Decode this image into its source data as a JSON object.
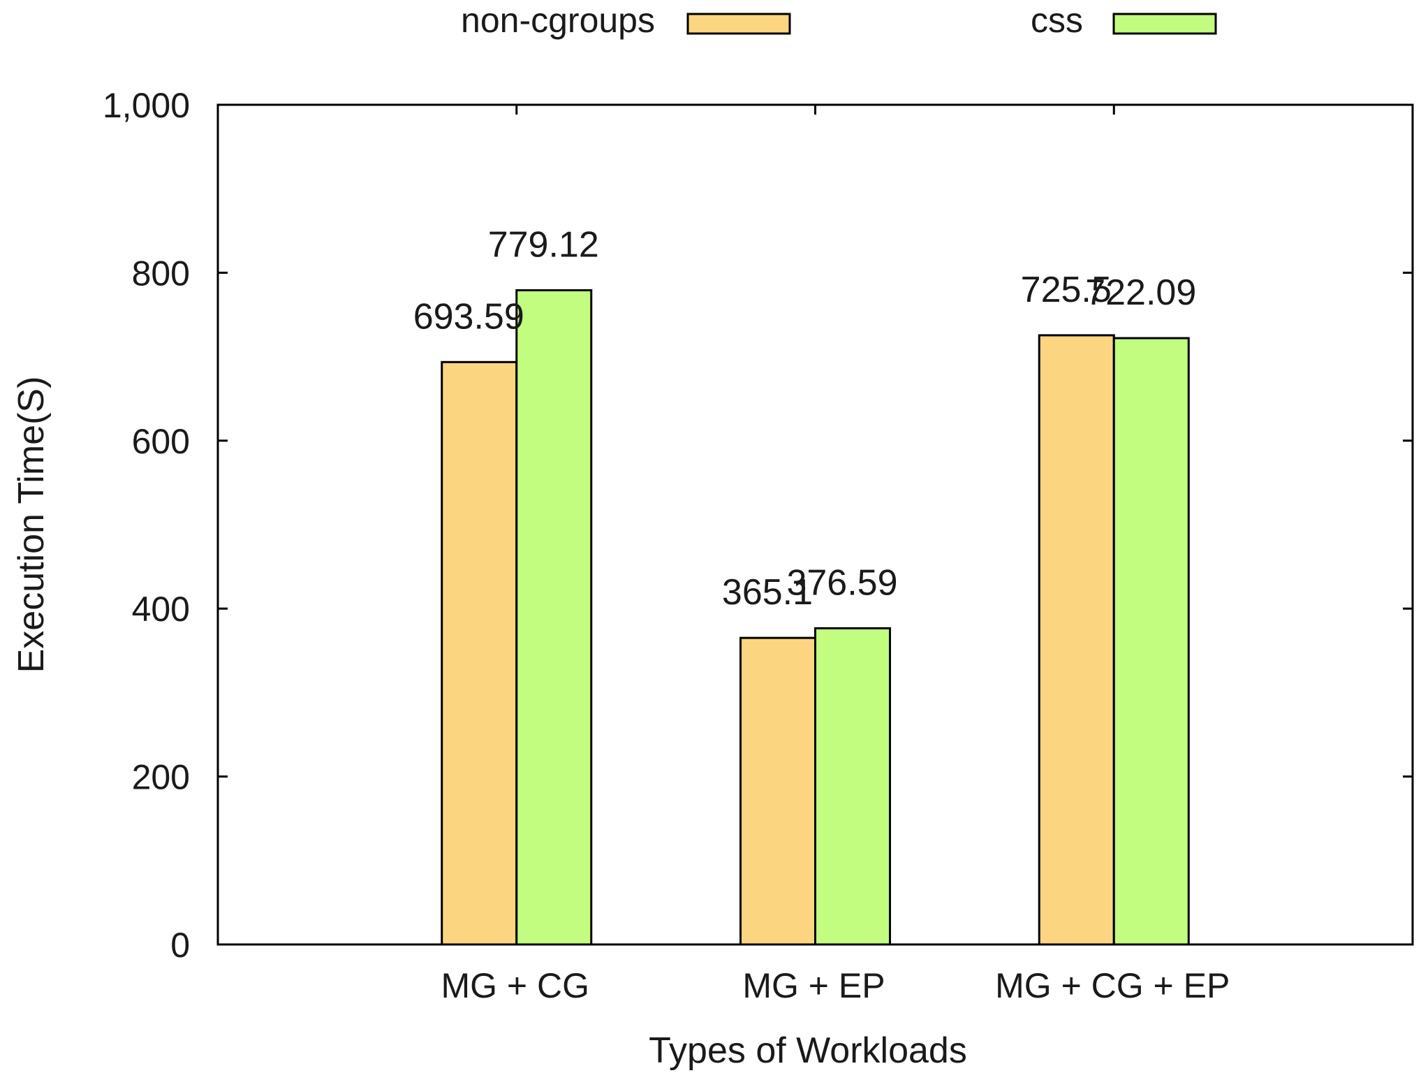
{
  "chart_data": {
    "type": "bar",
    "title": "",
    "xlabel": "Types of Workloads",
    "ylabel": "Execution Time(S)",
    "ylim": [
      0,
      1000
    ],
    "yticks": [
      0,
      200,
      400,
      600,
      800,
      1000
    ],
    "ytick_labels": [
      "0",
      "200",
      "400",
      "600",
      "800",
      "1,000"
    ],
    "x_slots": 4,
    "categories": [
      "MG + CG",
      "MG + EP",
      "MG + CG + EP"
    ],
    "category_slots": [
      1,
      2,
      3
    ],
    "series": [
      {
        "name": "non-cgroups",
        "color": "#fcd581",
        "values": [
          693.59,
          365.1,
          725.5
        ],
        "labels": [
          "693.59",
          "365.1",
          "725.5"
        ]
      },
      {
        "name": "css",
        "color": "#c2fd80",
        "values": [
          779.12,
          376.59,
          722.09
        ],
        "labels": [
          "779.12",
          "376.59",
          "722.09"
        ]
      }
    ],
    "legend": "top",
    "grid": false
  }
}
